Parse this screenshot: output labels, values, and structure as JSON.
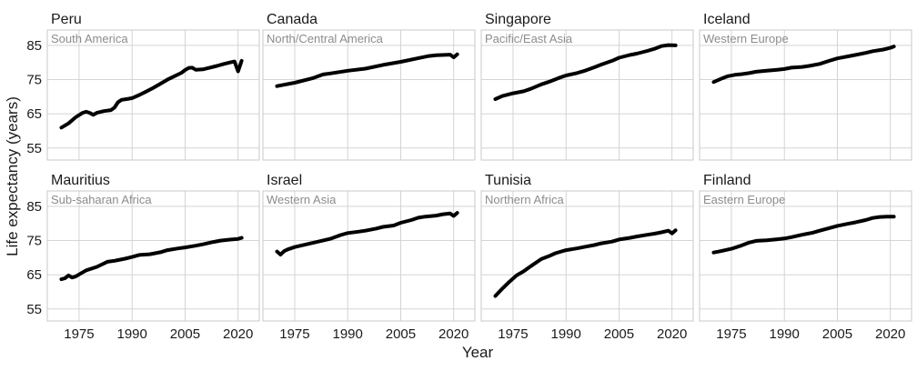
{
  "colors": {
    "line": "#000000",
    "grid": "#cfcfcf",
    "region_label": "#8c8c8c",
    "text": "#1a1a1a"
  },
  "chart_data": {
    "type": "line",
    "xlabel": "Year",
    "ylabel": "Life expectancy (years)",
    "x_ticks": [
      1975,
      1990,
      2005,
      2020
    ],
    "y_ticks": [
      55,
      65,
      75,
      85
    ],
    "xlim": [
      1966,
      2026
    ],
    "ylim": [
      51.5,
      89.5
    ],
    "grid": true,
    "panels": [
      {
        "country": "Peru",
        "region": "South America",
        "points": [
          [
            1970,
            61
          ],
          [
            1972,
            62.2
          ],
          [
            1974,
            64
          ],
          [
            1976,
            65.3
          ],
          [
            1977,
            65.6
          ],
          [
            1978,
            65.3
          ],
          [
            1979,
            64.7
          ],
          [
            1980,
            65.3
          ],
          [
            1982,
            65.8
          ],
          [
            1984,
            66.1
          ],
          [
            1985,
            66.8
          ],
          [
            1986,
            68.4
          ],
          [
            1987,
            69.1
          ],
          [
            1989,
            69.4
          ],
          [
            1990,
            69.6
          ],
          [
            1992,
            70.5
          ],
          [
            1994,
            71.5
          ],
          [
            1996,
            72.6
          ],
          [
            1998,
            73.8
          ],
          [
            2000,
            75
          ],
          [
            2002,
            76
          ],
          [
            2004,
            77
          ],
          [
            2005,
            77.8
          ],
          [
            2006,
            78.4
          ],
          [
            2007,
            78.5
          ],
          [
            2008,
            77.9
          ],
          [
            2010,
            78
          ],
          [
            2012,
            78.5
          ],
          [
            2014,
            79
          ],
          [
            2016,
            79.6
          ],
          [
            2018,
            80.1
          ],
          [
            2019,
            80.3
          ],
          [
            2020,
            77.4
          ],
          [
            2021,
            80.5
          ]
        ]
      },
      {
        "country": "Canada",
        "region": "North/Central America",
        "points": [
          [
            1970,
            73.1
          ],
          [
            1972,
            73.5
          ],
          [
            1975,
            74.1
          ],
          [
            1980,
            75.4
          ],
          [
            1983,
            76.5
          ],
          [
            1985,
            76.8
          ],
          [
            1990,
            77.6
          ],
          [
            1995,
            78.2
          ],
          [
            2000,
            79.3
          ],
          [
            2005,
            80.2
          ],
          [
            2010,
            81.3
          ],
          [
            2013,
            81.9
          ],
          [
            2015,
            82.1
          ],
          [
            2019,
            82.3
          ],
          [
            2020,
            81.5
          ],
          [
            2021,
            82.4
          ]
        ]
      },
      {
        "country": "Singapore",
        "region": "Pacific/East Asia",
        "points": [
          [
            1970,
            69.3
          ],
          [
            1972,
            70.2
          ],
          [
            1975,
            71
          ],
          [
            1978,
            71.6
          ],
          [
            1980,
            72.3
          ],
          [
            1983,
            73.6
          ],
          [
            1985,
            74.3
          ],
          [
            1988,
            75.5
          ],
          [
            1990,
            76.2
          ],
          [
            1993,
            76.9
          ],
          [
            1995,
            77.5
          ],
          [
            1998,
            78.6
          ],
          [
            2000,
            79.4
          ],
          [
            2003,
            80.5
          ],
          [
            2005,
            81.4
          ],
          [
            2008,
            82.2
          ],
          [
            2010,
            82.6
          ],
          [
            2013,
            83.4
          ],
          [
            2015,
            84
          ],
          [
            2017,
            84.8
          ],
          [
            2019,
            85.1
          ],
          [
            2021,
            85
          ]
        ]
      },
      {
        "country": "Iceland",
        "region": "Western Europe",
        "points": [
          [
            1970,
            74.3
          ],
          [
            1972,
            75.2
          ],
          [
            1974,
            76
          ],
          [
            1976,
            76.4
          ],
          [
            1978,
            76.6
          ],
          [
            1980,
            76.9
          ],
          [
            1982,
            77.3
          ],
          [
            1985,
            77.6
          ],
          [
            1988,
            77.9
          ],
          [
            1990,
            78.1
          ],
          [
            1992,
            78.5
          ],
          [
            1995,
            78.7
          ],
          [
            1997,
            79
          ],
          [
            2000,
            79.6
          ],
          [
            2003,
            80.6
          ],
          [
            2005,
            81.2
          ],
          [
            2008,
            81.8
          ],
          [
            2010,
            82.2
          ],
          [
            2013,
            82.8
          ],
          [
            2015,
            83.3
          ],
          [
            2018,
            83.8
          ],
          [
            2020,
            84.3
          ],
          [
            2021,
            84.7
          ]
        ]
      },
      {
        "country": "Mauritius",
        "region": "Sub-saharan Africa",
        "points": [
          [
            1970,
            63.7
          ],
          [
            1971,
            64
          ],
          [
            1972,
            64.8
          ],
          [
            1973,
            64.2
          ],
          [
            1974,
            64.5
          ],
          [
            1975,
            65.1
          ],
          [
            1977,
            66.3
          ],
          [
            1980,
            67.3
          ],
          [
            1983,
            68.8
          ],
          [
            1985,
            69.1
          ],
          [
            1988,
            69.7
          ],
          [
            1990,
            70.2
          ],
          [
            1992,
            70.8
          ],
          [
            1995,
            71
          ],
          [
            1998,
            71.6
          ],
          [
            2000,
            72.2
          ],
          [
            2003,
            72.7
          ],
          [
            2005,
            73
          ],
          [
            2008,
            73.5
          ],
          [
            2010,
            73.9
          ],
          [
            2013,
            74.6
          ],
          [
            2015,
            75
          ],
          [
            2018,
            75.3
          ],
          [
            2020,
            75.5
          ],
          [
            2021,
            75.8
          ]
        ]
      },
      {
        "country": "Israel",
        "region": "Western Asia",
        "points": [
          [
            1970,
            71.8
          ],
          [
            1971,
            70.9
          ],
          [
            1972,
            71.9
          ],
          [
            1973,
            72.4
          ],
          [
            1975,
            73.1
          ],
          [
            1980,
            74.3
          ],
          [
            1985,
            75.5
          ],
          [
            1988,
            76.6
          ],
          [
            1990,
            77.2
          ],
          [
            1993,
            77.6
          ],
          [
            1995,
            77.9
          ],
          [
            1998,
            78.5
          ],
          [
            2000,
            79
          ],
          [
            2003,
            79.4
          ],
          [
            2005,
            80.2
          ],
          [
            2008,
            81
          ],
          [
            2010,
            81.7
          ],
          [
            2012,
            82
          ],
          [
            2015,
            82.3
          ],
          [
            2017,
            82.7
          ],
          [
            2019,
            82.9
          ],
          [
            2020,
            82.2
          ],
          [
            2021,
            83.1
          ]
        ]
      },
      {
        "country": "Tunisia",
        "region": "Northern Africa",
        "points": [
          [
            1970,
            58.8
          ],
          [
            1972,
            61
          ],
          [
            1974,
            63
          ],
          [
            1976,
            64.8
          ],
          [
            1978,
            66
          ],
          [
            1980,
            67.5
          ],
          [
            1983,
            69.6
          ],
          [
            1985,
            70.4
          ],
          [
            1987,
            71.3
          ],
          [
            1990,
            72.2
          ],
          [
            1993,
            72.7
          ],
          [
            1995,
            73.1
          ],
          [
            1998,
            73.7
          ],
          [
            2000,
            74.2
          ],
          [
            2003,
            74.7
          ],
          [
            2005,
            75.3
          ],
          [
            2008,
            75.8
          ],
          [
            2010,
            76.2
          ],
          [
            2013,
            76.7
          ],
          [
            2015,
            77
          ],
          [
            2017,
            77.4
          ],
          [
            2019,
            77.9
          ],
          [
            2020,
            77.1
          ],
          [
            2021,
            78
          ]
        ]
      },
      {
        "country": "Finland",
        "region": "Eastern Europe",
        "points": [
          [
            1970,
            71.5
          ],
          [
            1972,
            71.9
          ],
          [
            1975,
            72.6
          ],
          [
            1978,
            73.6
          ],
          [
            1980,
            74.4
          ],
          [
            1982,
            74.9
          ],
          [
            1985,
            75.1
          ],
          [
            1988,
            75.4
          ],
          [
            1990,
            75.6
          ],
          [
            1992,
            76
          ],
          [
            1995,
            76.7
          ],
          [
            1998,
            77.3
          ],
          [
            2000,
            77.9
          ],
          [
            2003,
            78.7
          ],
          [
            2005,
            79.3
          ],
          [
            2008,
            79.9
          ],
          [
            2010,
            80.3
          ],
          [
            2013,
            81
          ],
          [
            2015,
            81.6
          ],
          [
            2017,
            81.9
          ],
          [
            2019,
            82
          ],
          [
            2021,
            82
          ]
        ]
      }
    ]
  }
}
